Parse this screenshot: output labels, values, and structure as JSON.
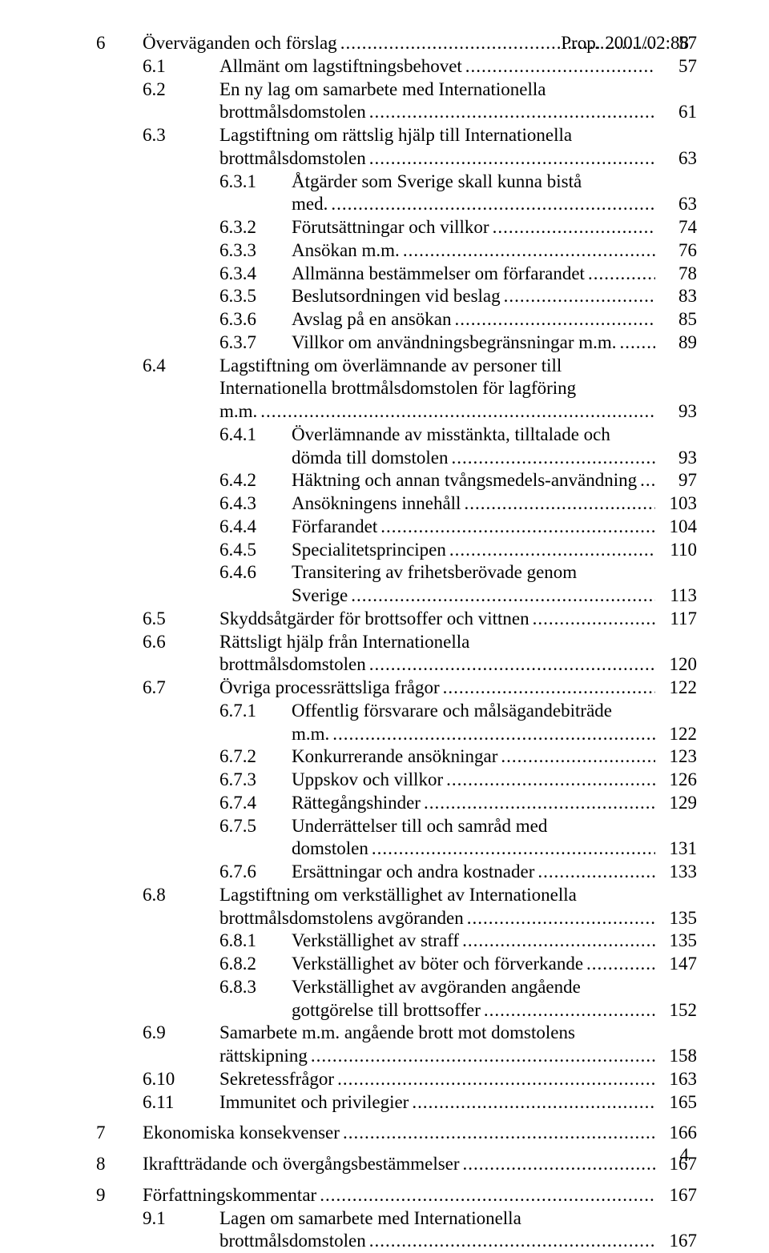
{
  "header_right": "Prop. 2001/02:88",
  "footer_page": "4",
  "entries": [
    {
      "indent": 0,
      "num": "6",
      "label": "Överväganden och förslag",
      "page": "57",
      "chapter": true
    },
    {
      "indent": 1,
      "num": "6.1",
      "label": "Allmänt om lagstiftningsbehovet",
      "page": "57"
    },
    {
      "indent": 1,
      "num": "6.2",
      "label": "En ny lag om samarbete med Internationella brottmålsdomstolen",
      "page": "61"
    },
    {
      "indent": 1,
      "num": "6.3",
      "label": "Lagstiftning om rättslig hjälp till Internationella brottmålsdomstolen",
      "page": "63"
    },
    {
      "indent": 2,
      "num": "6.3.1",
      "label": "Åtgärder som Sverige skall kunna bistå med.",
      "page": "63"
    },
    {
      "indent": 2,
      "num": "6.3.2",
      "label": "Förutsättningar och villkor",
      "page": "74"
    },
    {
      "indent": 2,
      "num": "6.3.3",
      "label": "Ansökan m.m.",
      "page": "76"
    },
    {
      "indent": 2,
      "num": "6.3.4",
      "label": "Allmänna bestämmelser om förfarandet",
      "page": "78"
    },
    {
      "indent": 2,
      "num": "6.3.5",
      "label": "Beslutsordningen vid beslag",
      "page": "83"
    },
    {
      "indent": 2,
      "num": "6.3.6",
      "label": "Avslag på en ansökan",
      "page": "85"
    },
    {
      "indent": 2,
      "num": "6.3.7",
      "label": "Villkor om användningsbegränsningar m.m.",
      "page": "89"
    },
    {
      "indent": 1,
      "num": "6.4",
      "label": "Lagstiftning om överlämnande av personer till Internationella brottmålsdomstolen för lagföring m.m.",
      "page": "93"
    },
    {
      "indent": 2,
      "num": "6.4.1",
      "label": "Överlämnande av misstänkta, tilltalade och dömda till domstolen",
      "page": "93"
    },
    {
      "indent": 2,
      "num": "6.4.2",
      "label": "Häktning och annan tvångsmedels-användning",
      "page": "97"
    },
    {
      "indent": 2,
      "num": "6.4.3",
      "label": "Ansökningens innehåll",
      "page": "103"
    },
    {
      "indent": 2,
      "num": "6.4.4",
      "label": "Förfarandet",
      "page": "104"
    },
    {
      "indent": 2,
      "num": "6.4.5",
      "label": "Specialitetsprincipen",
      "page": "110"
    },
    {
      "indent": 2,
      "num": "6.4.6",
      "label": "Transitering av frihetsberövade genom Sverige",
      "page": "113"
    },
    {
      "indent": 1,
      "num": "6.5",
      "label": "Skyddsåtgärder för brottsoffer och vittnen",
      "page": "117"
    },
    {
      "indent": 1,
      "num": "6.6",
      "label": "Rättsligt hjälp från Internationella brottmålsdomstolen",
      "page": "120"
    },
    {
      "indent": 1,
      "num": "6.7",
      "label": "Övriga processrättsliga frågor",
      "page": "122"
    },
    {
      "indent": 2,
      "num": "6.7.1",
      "label": "Offentlig försvarare och målsägandebiträde m.m.",
      "page": "122"
    },
    {
      "indent": 2,
      "num": "6.7.2",
      "label": "Konkurrerande ansökningar",
      "page": "123"
    },
    {
      "indent": 2,
      "num": "6.7.3",
      "label": "Uppskov och villkor",
      "page": "126"
    },
    {
      "indent": 2,
      "num": "6.7.4",
      "label": "Rättegångshinder",
      "page": "129"
    },
    {
      "indent": 2,
      "num": "6.7.5",
      "label": "Underrättelser till och samråd med domstolen",
      "page": "131"
    },
    {
      "indent": 2,
      "num": "6.7.6",
      "label": "Ersättningar och andra kostnader",
      "page": "133"
    },
    {
      "indent": 1,
      "num": "6.8",
      "label": "Lagstiftning om verkställighet av Internationella brottmålsdomstolens avgöranden",
      "page": "135"
    },
    {
      "indent": 2,
      "num": "6.8.1",
      "label": "Verkställighet av straff",
      "page": "135"
    },
    {
      "indent": 2,
      "num": "6.8.2",
      "label": "Verkställighet av böter och förverkande",
      "page": "147"
    },
    {
      "indent": 2,
      "num": "6.8.3",
      "label": "Verkställighet av avgöranden angående gottgörelse till brottsoffer",
      "page": "152"
    },
    {
      "indent": 1,
      "num": "6.9",
      "label": "Samarbete m.m. angående brott mot domstolens rättskipning",
      "page": "158"
    },
    {
      "indent": 1,
      "num": "6.10",
      "label": "Sekretessfrågor",
      "page": "163"
    },
    {
      "indent": 1,
      "num": "6.11",
      "label": "Immunitet och privilegier",
      "page": "165"
    },
    {
      "indent": 0,
      "num": "7",
      "label": "Ekonomiska konsekvenser",
      "page": "166",
      "chapter": true
    },
    {
      "indent": 0,
      "num": "8",
      "label": "Ikraftträdande och övergångsbestämmelser",
      "page": "167",
      "chapter": true
    },
    {
      "indent": 0,
      "num": "9",
      "label": "Författningskommentar",
      "page": "167",
      "chapter": true
    },
    {
      "indent": 1,
      "num": "9.1",
      "label": "Lagen om samarbete med Internationella brottmålsdomstolen",
      "page": "167"
    }
  ]
}
